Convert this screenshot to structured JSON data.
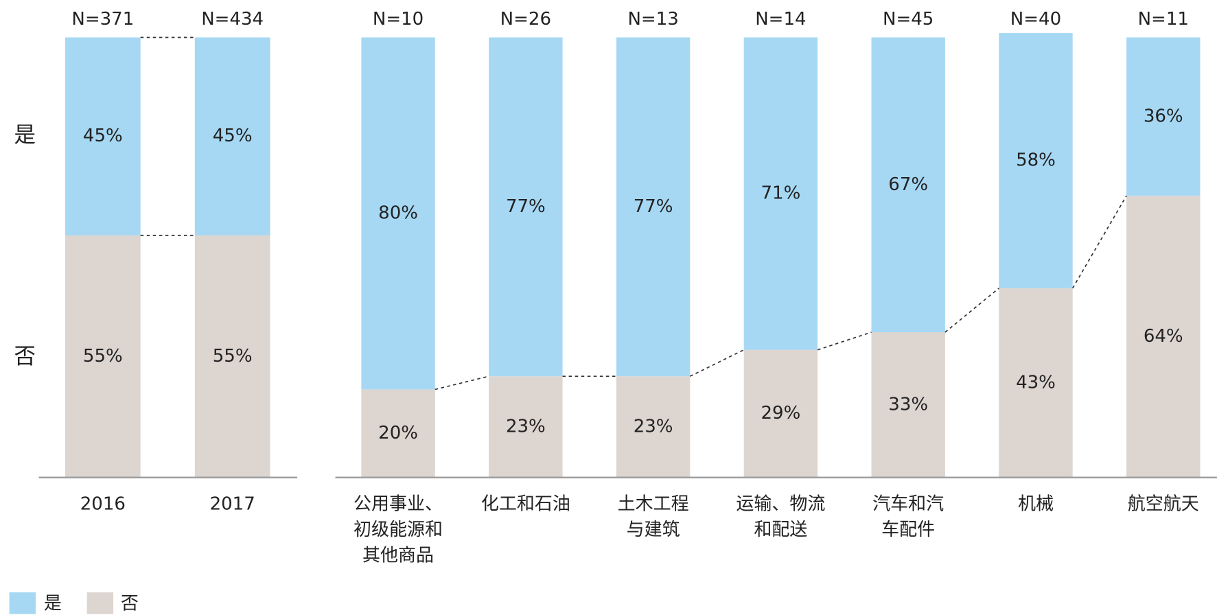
{
  "chart_data": [
    {
      "type": "bar",
      "stacked": true,
      "categories": [
        "2016",
        "2017"
      ],
      "n_labels": [
        "N=371",
        "N=434"
      ],
      "ylim": [
        0,
        100
      ],
      "series": [
        {
          "name": "是",
          "color": "#a6d8f4",
          "values": [
            45,
            45
          ],
          "value_labels": [
            "45%",
            "45%"
          ]
        },
        {
          "name": "否",
          "color": "#ddd5d0",
          "values": [
            55,
            55
          ],
          "value_labels": [
            "55%",
            "55%"
          ]
        }
      ]
    },
    {
      "type": "bar",
      "stacked": true,
      "categories": [
        [
          "公用事业、",
          "初级能源和",
          "其他商品"
        ],
        [
          "化工和石油"
        ],
        [
          "土木工程",
          "与建筑"
        ],
        [
          "运输、物流",
          "和配送"
        ],
        [
          "汽车和汽",
          "车配件"
        ],
        [
          "机械"
        ],
        [
          "航空航天"
        ]
      ],
      "n_labels": [
        "N=10",
        "N=26",
        "N=13",
        "N=14",
        "N=45",
        "N=40",
        "N=11"
      ],
      "ylim": [
        0,
        100
      ],
      "series": [
        {
          "name": "是",
          "color": "#a6d8f4",
          "values": [
            80,
            77,
            77,
            71,
            67,
            58,
            36
          ],
          "value_labels": [
            "80%",
            "77%",
            "77%",
            "71%",
            "67%",
            "58%",
            "36%"
          ]
        },
        {
          "name": "否",
          "color": "#ddd5d0",
          "values": [
            20,
            23,
            23,
            29,
            33,
            43,
            64
          ],
          "value_labels": [
            "20%",
            "23%",
            "23%",
            "29%",
            "33%",
            "43%",
            "64%"
          ]
        }
      ]
    }
  ]
}
